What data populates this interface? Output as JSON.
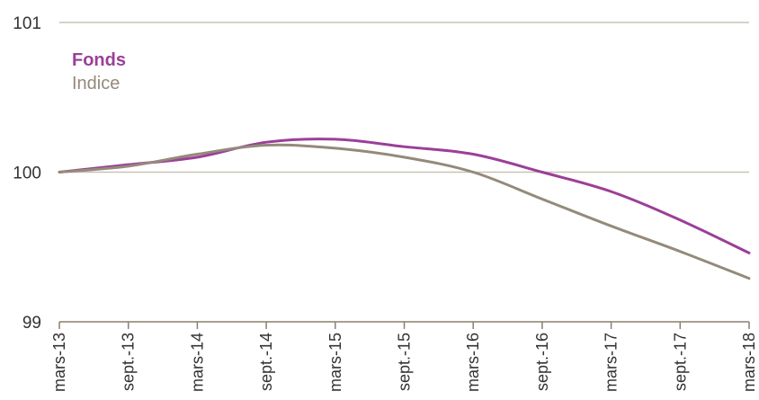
{
  "chart_data": {
    "type": "line",
    "x": [
      "mars-13",
      "sept.-13",
      "mars-14",
      "sept.-14",
      "mars-15",
      "sept.-15",
      "mars-16",
      "sept.-16",
      "mars-17",
      "sept.-17",
      "mars-18"
    ],
    "y_ticks": [
      "99",
      "100",
      "101"
    ],
    "ylim": [
      99,
      101
    ],
    "grid": true,
    "legend_position": "top-left",
    "series": [
      {
        "name": "Fonds",
        "color": "#9b3f98",
        "values": [
          100.0,
          100.05,
          100.1,
          100.2,
          100.22,
          100.17,
          100.12,
          100.0,
          99.87,
          99.68,
          99.46
        ]
      },
      {
        "name": "Indice",
        "color": "#948a7a",
        "values": [
          100.0,
          100.04,
          100.12,
          100.18,
          100.16,
          100.1,
          100.0,
          99.82,
          99.64,
          99.47,
          99.29
        ]
      }
    ]
  }
}
